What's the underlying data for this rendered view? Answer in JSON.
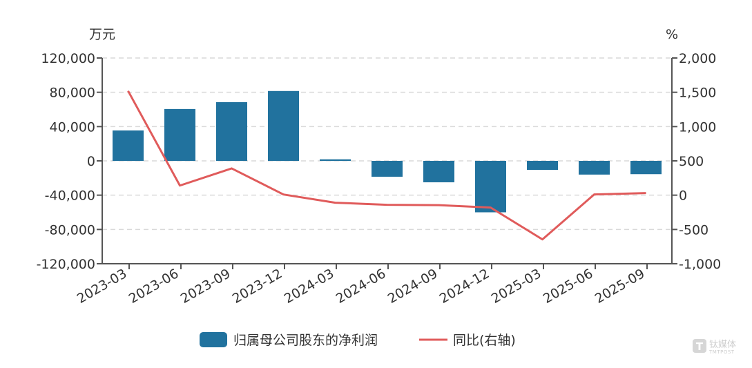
{
  "chart_data": {
    "type": "bar",
    "title": "",
    "xlabel": "",
    "ylabel": "万元",
    "y2label": "%",
    "categories": [
      "2023-03",
      "2023-06",
      "2023-09",
      "2023-12",
      "2024-03",
      "2024-06",
      "2024-09",
      "2024-12",
      "2025-03",
      "2025-06",
      "2025-09"
    ],
    "series": [
      {
        "name": "归属母公司股东的净利润",
        "type": "bar",
        "axis": "left",
        "color": "#21729e",
        "values": [
          35500,
          60500,
          68500,
          81500,
          1800,
          -18500,
          -25000,
          -60000,
          -10500,
          -16000,
          -15500
        ]
      },
      {
        "name": "同比(右轴)",
        "type": "line",
        "axis": "right",
        "color": "#e05b5b",
        "values": [
          1520,
          140,
          390,
          10,
          -110,
          -141,
          -145,
          -181,
          -645,
          10,
          30
        ]
      }
    ],
    "ylim": [
      -120000,
      120000
    ],
    "y2lim": [
      -1000,
      2000
    ],
    "yticks": [
      120000,
      80000,
      40000,
      0,
      -40000,
      -80000,
      -120000
    ],
    "y2ticks": [
      2000,
      1500,
      1000,
      500,
      0,
      -500,
      -1000
    ],
    "grid": true,
    "legend_position": "bottom"
  },
  "axes": {
    "left_unit": "万元",
    "right_unit": "%",
    "left_tick_labels": [
      "120,000",
      "80,000",
      "40,000",
      "0",
      "-40,000",
      "-80,000",
      "-120,000"
    ],
    "right_tick_labels": [
      "2,000",
      "1,500",
      "1,000",
      "500",
      "0",
      "-500",
      "-1,000"
    ]
  },
  "legend": {
    "items": [
      {
        "label": "归属母公司股东的净利润",
        "color": "#21729e",
        "shape": "rect"
      },
      {
        "label": "同比(右轴)",
        "color": "#e05b5b",
        "shape": "line"
      }
    ]
  },
  "watermark": {
    "main": "钛媒体",
    "sub": "TMTPOST",
    "icon": "tmtpost-logo-icon"
  }
}
